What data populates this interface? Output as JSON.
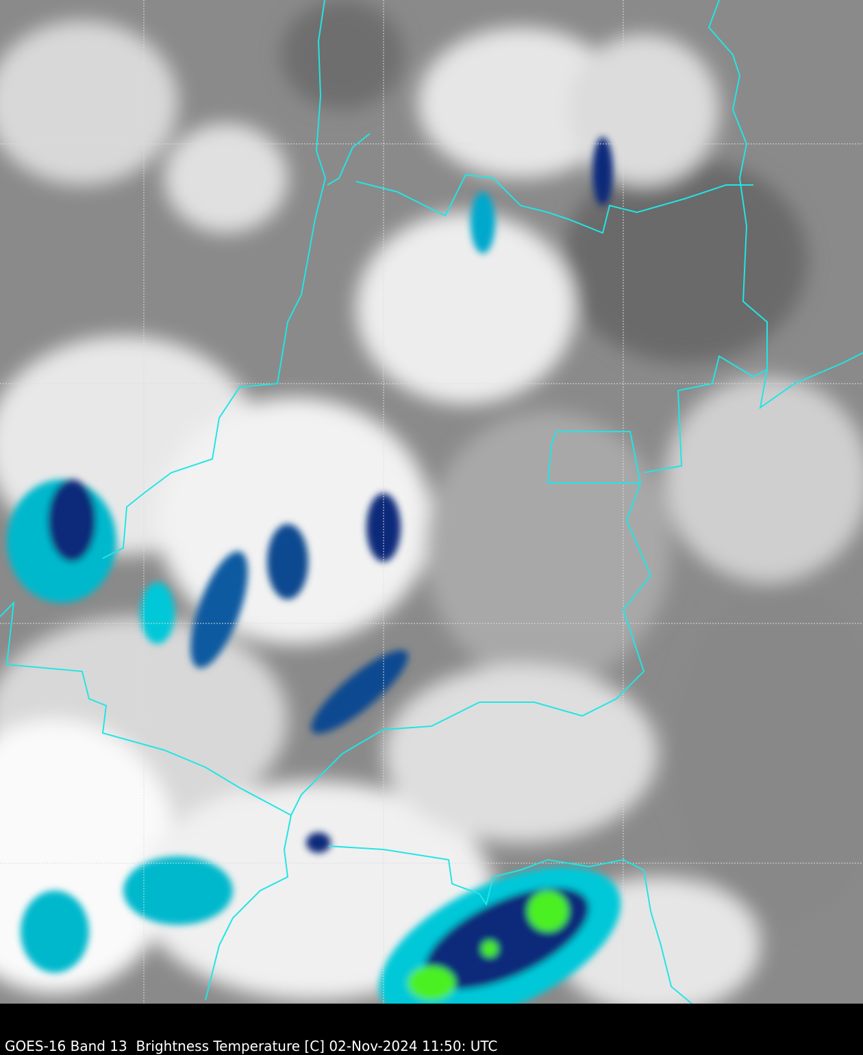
{
  "caption": "GOES-16 Band 13  Brightness Temperature [C] 02-Nov-2024 11:50: UTC",
  "colors": {
    "border": "#22e5e5",
    "gridline": "#dddddd",
    "warm_surface": "#6e6e6e",
    "cloud": "#f0f0f0",
    "cold_cloud_cyan": "#00c8d8",
    "cold_cloud_blue": "#0a2a7a",
    "very_cold_green": "#4cf020",
    "background": "#000000"
  },
  "map": {
    "imagery": "infrared brightness temperature",
    "gridlines": "dashed"
  }
}
